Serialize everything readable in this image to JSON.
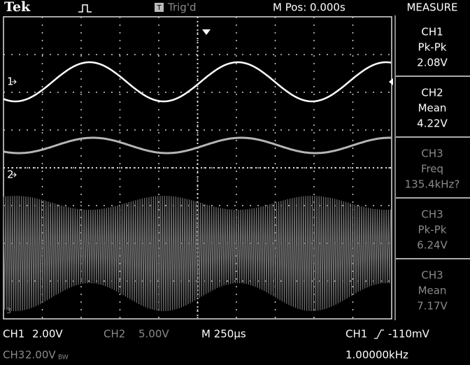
{
  "header": {
    "brand": "Tek",
    "trigger_state": "Trig'd",
    "trigger_icon": "T",
    "position": "M Pos: 0.000s",
    "menu_title": "MEASURE"
  },
  "measurements": [
    {
      "source": "CH1",
      "kind": "Pk-Pk",
      "reading": "2.08V"
    },
    {
      "source": "CH2",
      "kind": "Mean",
      "reading": "4.22V"
    },
    {
      "source": "CH3",
      "kind": "Freq",
      "reading": "135.4kHz?"
    },
    {
      "source": "CH3",
      "kind": "Pk-Pk",
      "reading": "6.24V"
    },
    {
      "source": "CH3",
      "kind": "Mean",
      "reading": "7.17V"
    }
  ],
  "markers": [
    "1",
    "2",
    "3"
  ],
  "footer": {
    "ch1": "CH1",
    "ch1_scale": "2.00V",
    "ch2": "CH2",
    "ch2_scale": "5.00V",
    "timebase": "M 250µs",
    "trigger_source": "CH1",
    "trigger_level": "-110mV",
    "ch3": "CH3",
    "ch3_scale": "2.00V",
    "ch3_bw": "BW",
    "frequency": "1.00000kHz"
  }
}
